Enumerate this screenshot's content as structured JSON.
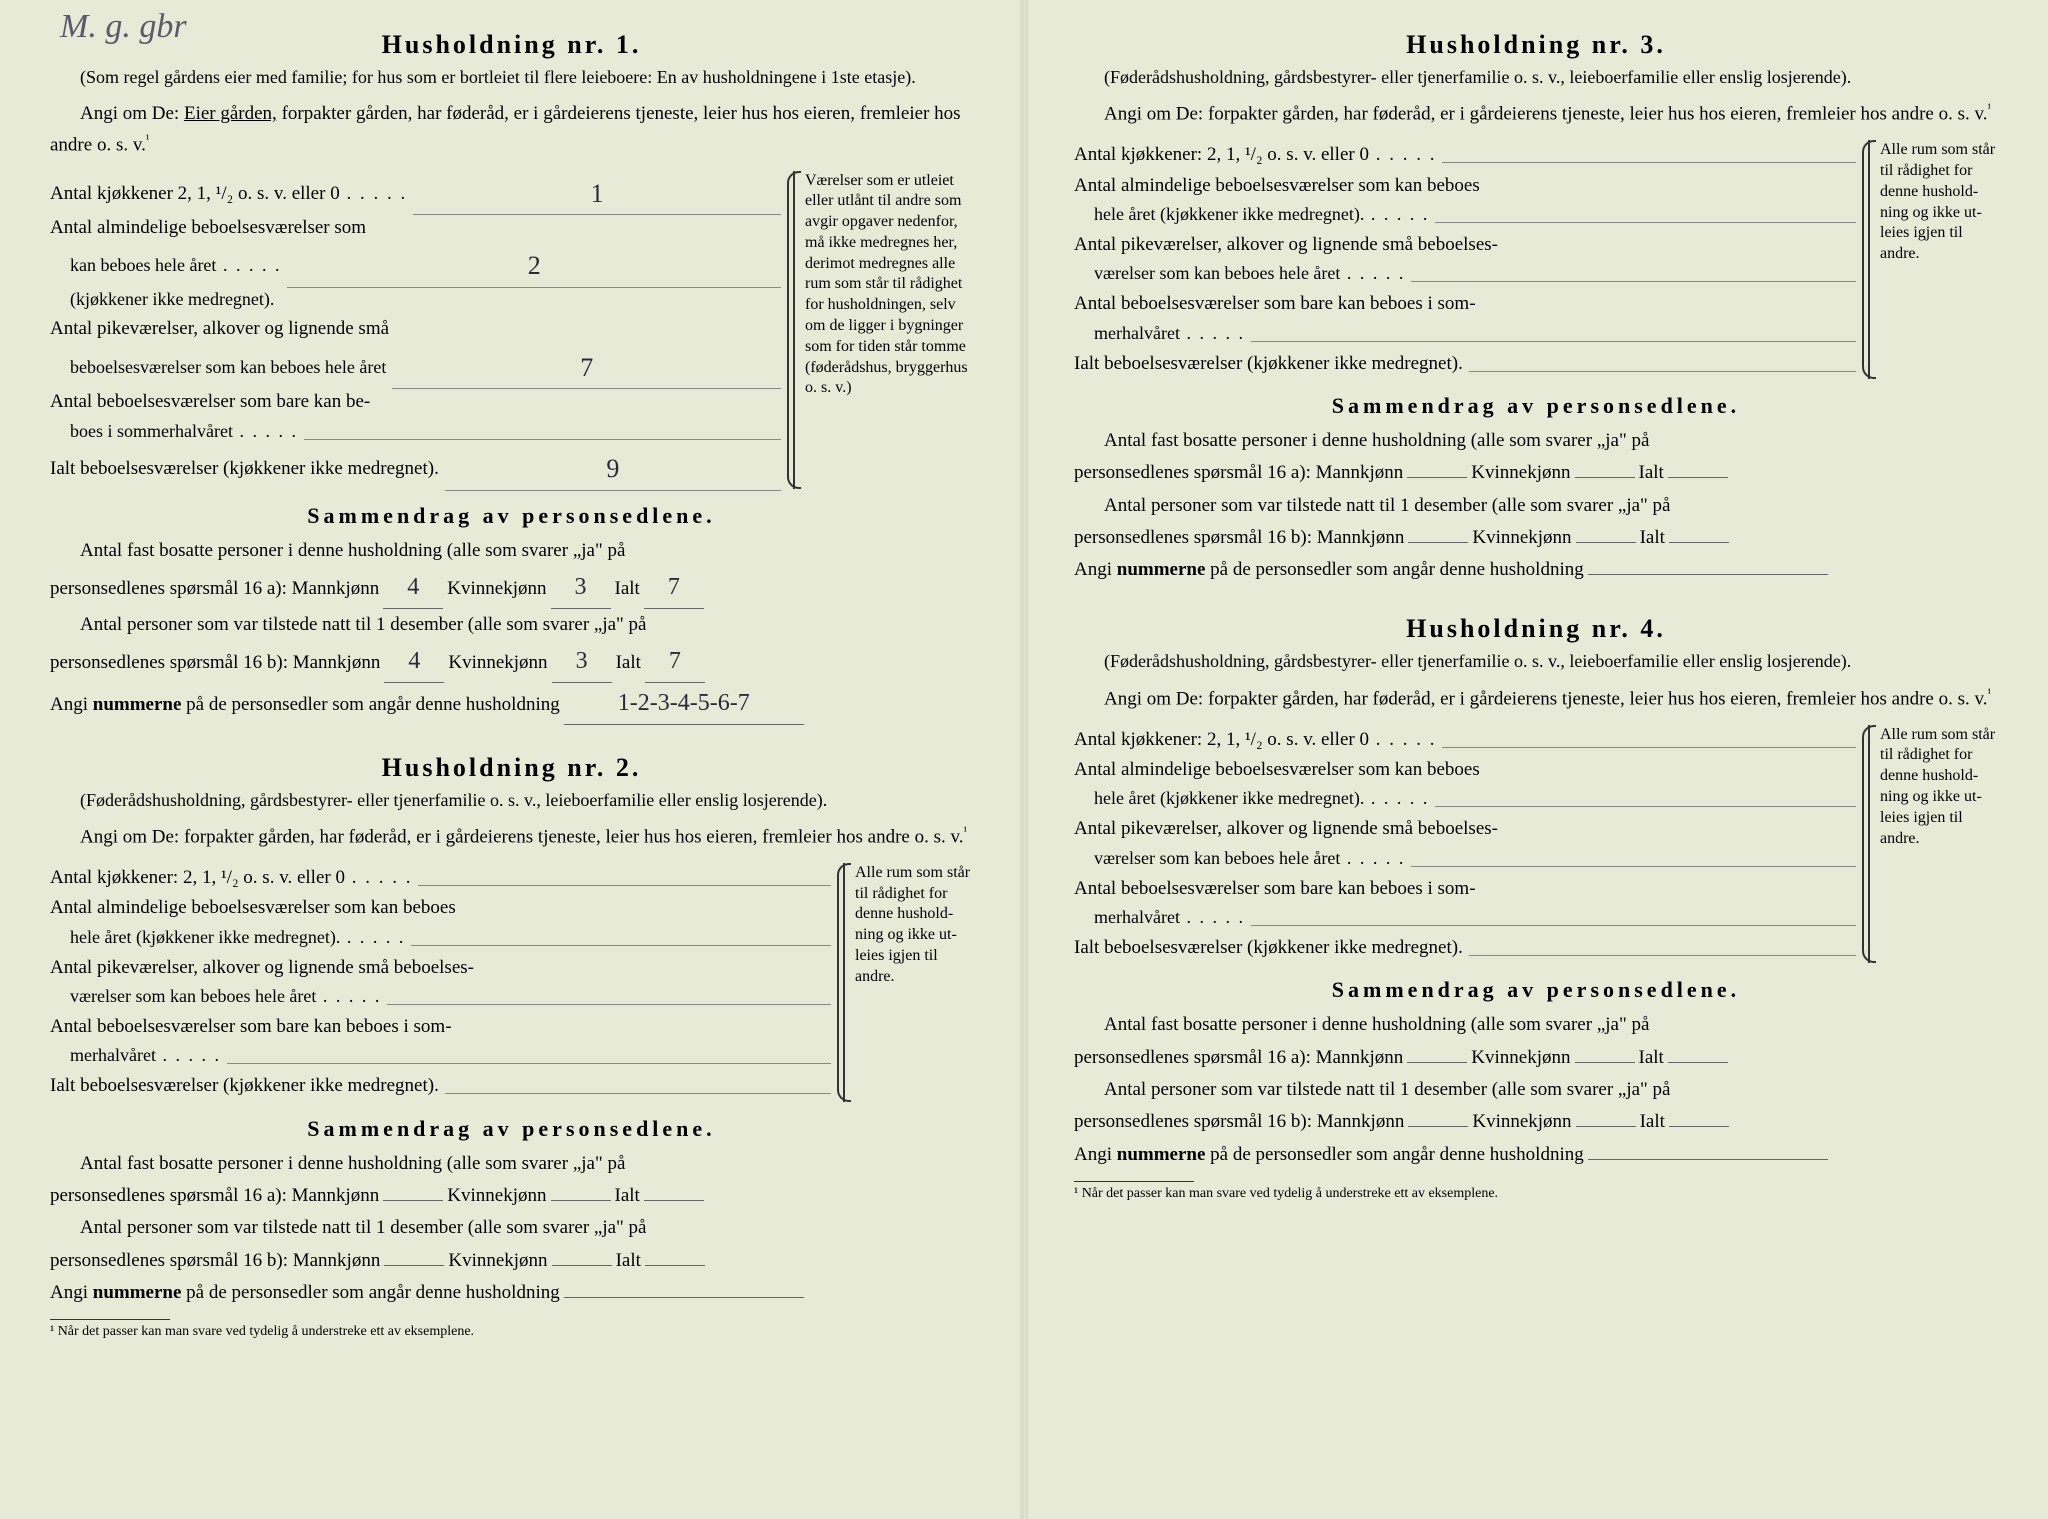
{
  "handwriting_top": "M. g. gbr",
  "labels": {
    "title_prefix": "Husholdning nr.",
    "subtitle_1": "(Som regel gårdens eier med familie; for hus som er bortleiet til flere leieboere: En av husholdningene i 1ste etasje).",
    "subtitle_other": "(Føderådshusholdning, gårdsbestyrer- eller tjenerfamilie o. s. v., leieboerfamilie eller enslig losjerende).",
    "prompt_intro": "Angi om De:",
    "prompt_1_rest": "forpakter gården, har føderåd, er i gård­eierens tjeneste, leier hus hos eieren, fremleier hos andre o. s. v.",
    "prompt_1_owner": "Eier gården,",
    "prompt_other_rest": "forpakter gården, har føderåd, er i gårdeierens tjeneste, leier hus hos eieren, fremleier hos andre o. s. v.",
    "kjokkener_1": "Antal kjøkkener 2, 1, ¹/₂ o. s. v. eller 0",
    "kjokkener_other": "Antal kjøkkener: 2, 1, ¹/₂ o. s. v. eller 0",
    "alm_1a": "Antal almindelige beboelsesværelser som",
    "alm_1b": "kan beboes hele året",
    "alm_note": "(kjøkkener ikke medregnet).",
    "alm_other_a": "Antal almindelige beboelsesværelser som kan beboes",
    "alm_other_b": "hele året (kjøkkener ikke medregnet).",
    "pike_1a": "Antal pikeværelser, alkover og lignende små",
    "pike_1b": "beboelsesværelser som kan beboes hele året",
    "pike_other_a": "Antal pikeværelser, alkover og lignende små beboelses-",
    "pike_other_b": "værelser som kan beboes hele året",
    "sommer_a": "Antal beboelsesværelser som bare kan be-",
    "sommer_b": "boes i sommerhalvåret",
    "sommer_other_a": "Antal beboelsesværelser som bare kan beboes i som-",
    "sommer_other_b": "merhalvåret",
    "ialt": "Ialt beboelsesværelser (kjøkkener ikke medregnet).",
    "brace_1": "Værelser som er utleiet eller utlånt til andre som avgir opgaver nedenfor, må ikke medregnes her, derimot medregnes alle rum som står til rådighet for husholdningen, selv om de ligger i bygnin­ger som for tiden står tomme (føderådshus, bryggerhus o. s. v.)",
    "brace_other": "Alle rum som står til rådighet for denne hushold­ning og ikke ut­leies igjen til andre.",
    "sammendrag": "Sammendrag av personsedlene.",
    "fast_bosatte": "Antal fast bosatte personer i denne husholdning (alle som svarer „ja\" på",
    "sporsmal_16a": "personsedlenes spørsmål 16 a): Mannkjønn",
    "kvinnekjonn": "Kvinnekjønn",
    "ialt_label": "Ialt",
    "tilstede": "Antal personer som var tilstede natt til 1 desember (alle som svarer „ja\" på",
    "sporsmal_16b": "personsedlenes spørsmål 16 b): Mannkjønn",
    "nummerne_a": "Angi",
    "nummerne_b": "nummerne",
    "nummerne_c": "på de personsedler som angår denne husholdning",
    "footnote": "¹ Når det passer kan man svare ved tydelig å understreke ett av eksemplene.",
    "sup1": "¹"
  },
  "households": [
    {
      "num": "1.",
      "kjokkener": "1",
      "alm": "2",
      "pike": "7",
      "sommer": "",
      "ialt": "9",
      "mann_a": "4",
      "kvinne_a": "3",
      "ialt_a": "7",
      "mann_b": "4",
      "kvinne_b": "3",
      "ialt_b": "7",
      "numre": "1-2-3-4-5-6-7"
    },
    {
      "num": "2.",
      "kjokkener": "",
      "alm": "",
      "pike": "",
      "sommer": "",
      "ialt": "",
      "mann_a": "",
      "kvinne_a": "",
      "ialt_a": "",
      "mann_b": "",
      "kvinne_b": "",
      "ialt_b": "",
      "numre": ""
    },
    {
      "num": "3.",
      "kjokkener": "",
      "alm": "",
      "pike": "",
      "sommer": "",
      "ialt": "",
      "mann_a": "",
      "kvinne_a": "",
      "ialt_a": "",
      "mann_b": "",
      "kvinne_b": "",
      "ialt_b": "",
      "numre": ""
    },
    {
      "num": "4.",
      "kjokkener": "",
      "alm": "",
      "pike": "",
      "sommer": "",
      "ialt": "",
      "mann_a": "",
      "kvinne_a": "",
      "ialt_a": "",
      "mann_b": "",
      "kvinne_b": "",
      "ialt_b": "",
      "numre": ""
    }
  ]
}
